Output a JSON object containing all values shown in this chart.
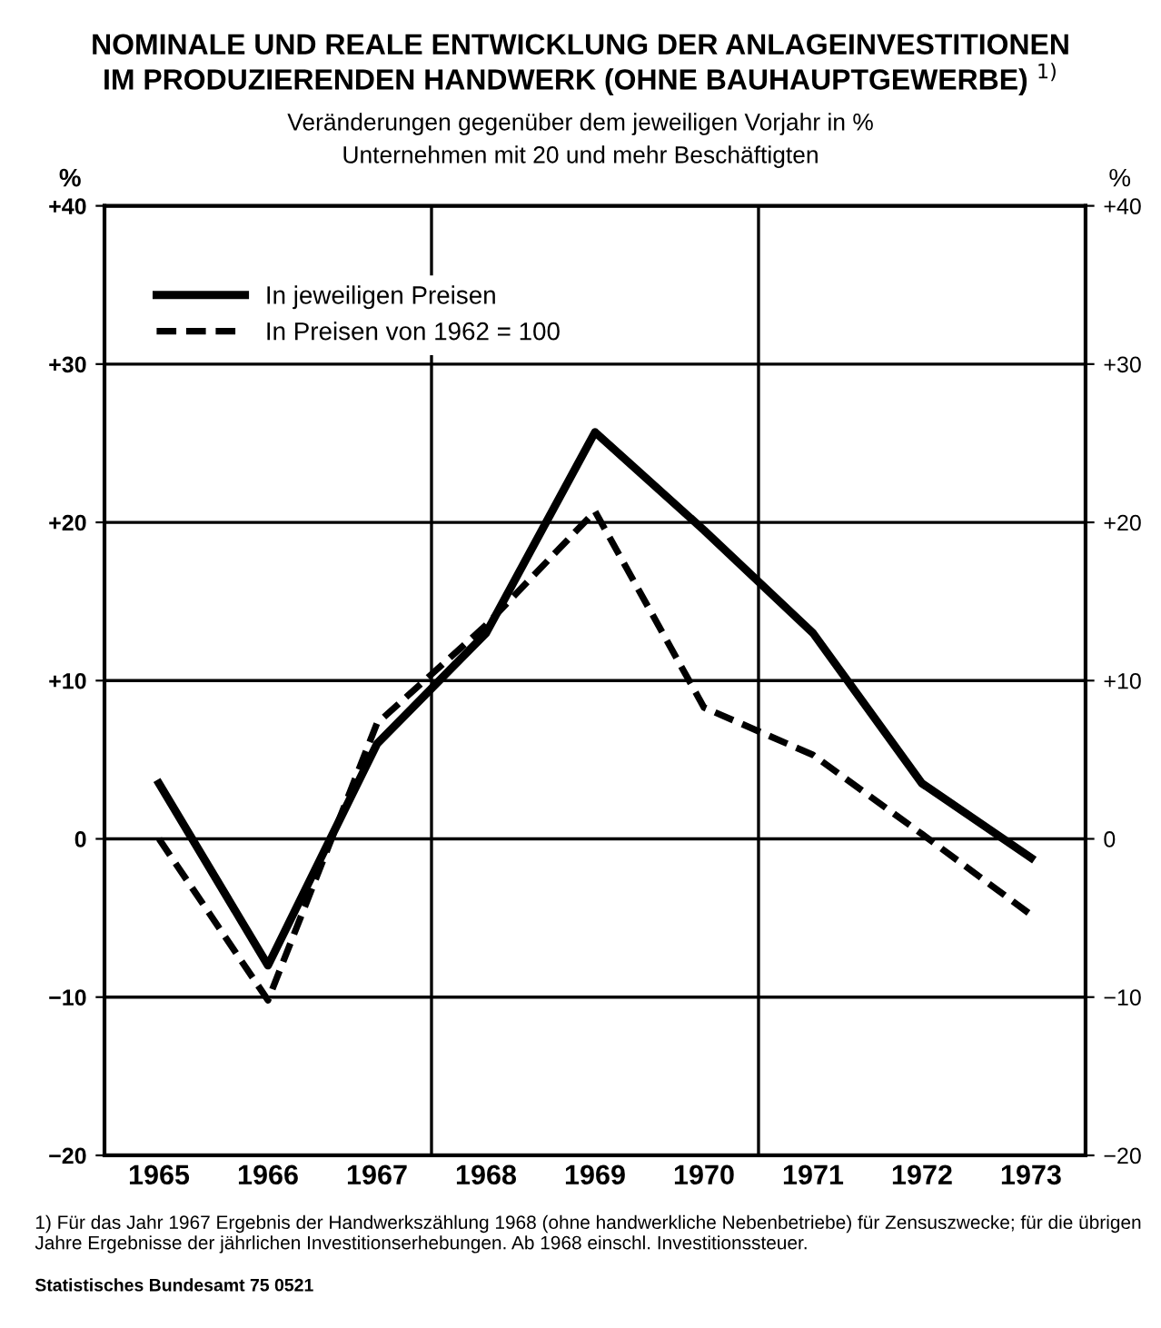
{
  "chart_data": {
    "type": "line",
    "title": "NOMINALE UND REALE ENTWICKLUNG DER ANLAGEINVESTITIONEN\nIM PRODUZIERENDEN HANDWERK (OHNE BAUHAUPTGEWERBE) $^{1)}$",
    "subtitle": "Veränderungen gegenüber dem jeweiligen Vorjahr in %\nUnternehmen mit 20 und mehr Beschäftigten",
    "ylabel": "%",
    "y2label": "%",
    "categories": [
      "1965",
      "1966",
      "1967",
      "1968",
      "1969",
      "1970",
      "1971",
      "1972",
      "1973"
    ],
    "series": [
      {
        "name": "In jeweiligen Preisen",
        "color": "#000000",
        "line_style": "solid",
        "values": [
          3.5,
          -8,
          6,
          13,
          25.7,
          19.5,
          13,
          3.5,
          -1.2
        ]
      },
      {
        "name": "In Preisen von 1962 = 100",
        "color": "#000000",
        "line_style": "dashed",
        "values": [
          0,
          -10.2,
          7.3,
          13.5,
          20.7,
          8.3,
          5.3,
          0.3,
          -4.8
        ]
      }
    ],
    "ylim": [
      -20,
      40
    ],
    "yticks": [
      {
        "value": -20,
        "label": "−20"
      },
      {
        "value": -10,
        "label": "−10"
      },
      0,
      {
        "value": 10,
        "label": "+10"
      },
      {
        "value": 20,
        "label": "+20"
      },
      {
        "value": 30,
        "label": "+30"
      },
      {
        "value": 40,
        "label": "+40"
      }
    ],
    "y2lim": [
      -20,
      40
    ],
    "y2ticks": [
      {
        "value": -20,
        "label": "−20"
      },
      {
        "value": -10,
        "label": "−10"
      },
      0,
      {
        "value": 10,
        "label": "+10"
      },
      {
        "value": 20,
        "label": "+20"
      },
      {
        "value": 30,
        "label": "+30"
      },
      {
        "value": 40,
        "label": "+40"
      }
    ],
    "grid": true,
    "legend": "top left",
    "marker": "none",
    "annotations": [
      "1) Für das Jahr 1967 Ergebnis der Handwerkszählung 1968 (ohne handwerkliche Nebenbetriebe) für Zensuszwecke; für die übrigen Jahre Ergebnisse der jährlichen Investitionserhebungen. Ab 1968 einschl. Investitionssteuer.",
      "Statistisches Bundesamt 75 0521"
    ]
  }
}
